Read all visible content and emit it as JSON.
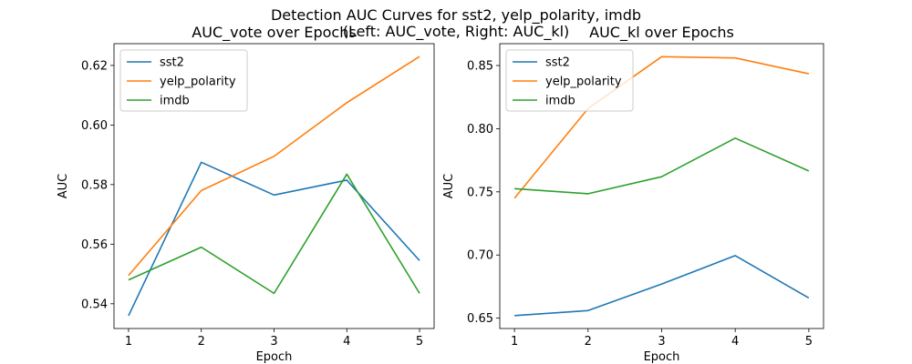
{
  "figure": {
    "suptitle_line1": "Detection AUC Curves for sst2, yelp_polarity, imdb",
    "suptitle_line2": "(Left: AUC_vote, Right: AUC_kl)"
  },
  "chart_data": [
    {
      "type": "line",
      "title": "AUC_vote over Epochs",
      "xlabel": "Epoch",
      "ylabel": "AUC",
      "x": [
        1,
        2,
        3,
        4,
        5
      ],
      "xticks": [
        "1",
        "2",
        "3",
        "4",
        "5"
      ],
      "xlim": [
        0.8,
        5.2
      ],
      "ylim": [
        0.5317,
        0.6273
      ],
      "yticks": [
        0.54,
        0.56,
        0.58,
        0.6,
        0.62
      ],
      "ytick_labels": [
        "0.54",
        "0.56",
        "0.58",
        "0.60",
        "0.62"
      ],
      "grid": false,
      "legend": "top-left",
      "series": [
        {
          "name": "sst2",
          "color": "#1f77b4",
          "values": [
            0.536,
            0.5875,
            0.5765,
            0.5815,
            0.5545
          ]
        },
        {
          "name": "yelp_polarity",
          "color": "#ff7f0e",
          "values": [
            0.5495,
            0.578,
            0.5895,
            0.6075,
            0.623
          ]
        },
        {
          "name": "imdb",
          "color": "#2ca02c",
          "values": [
            0.548,
            0.559,
            0.5435,
            0.5835,
            0.5435
          ]
        }
      ]
    },
    {
      "type": "line",
      "title": "AUC_kl over Epochs",
      "xlabel": "Epoch",
      "ylabel": "AUC",
      "x": [
        1,
        2,
        3,
        4,
        5
      ],
      "xticks": [
        "1",
        "2",
        "3",
        "4",
        "5"
      ],
      "xlim": [
        0.8,
        5.2
      ],
      "ylim": [
        0.6418,
        0.8673
      ],
      "yticks": [
        0.65,
        0.7,
        0.75,
        0.8,
        0.85
      ],
      "ytick_labels": [
        "0.65",
        "0.70",
        "0.75",
        "0.80",
        "0.85"
      ],
      "grid": false,
      "legend": "top-left",
      "series": [
        {
          "name": "sst2",
          "color": "#1f77b4",
          "values": [
            0.652,
            0.656,
            0.677,
            0.6995,
            0.666
          ]
        },
        {
          "name": "yelp_polarity",
          "color": "#ff7f0e",
          "values": [
            0.745,
            0.816,
            0.857,
            0.856,
            0.8435
          ]
        },
        {
          "name": "imdb",
          "color": "#2ca02c",
          "values": [
            0.7525,
            0.7485,
            0.762,
            0.7925,
            0.7665
          ]
        }
      ]
    }
  ]
}
